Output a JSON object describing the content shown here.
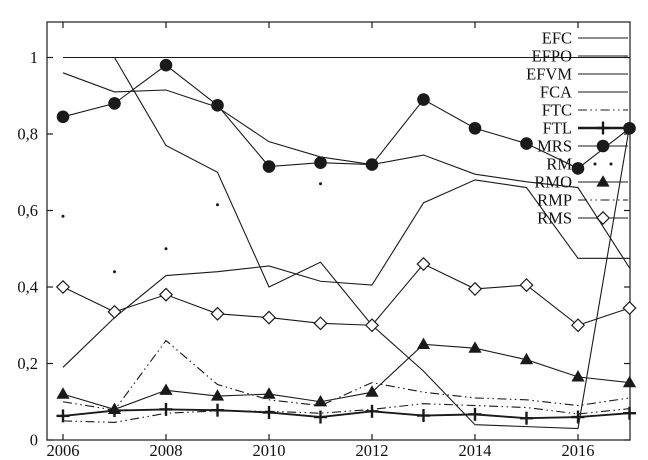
{
  "colors": {
    "ink": "#1a1a1a",
    "background": "#ffffff"
  },
  "chart_data": {
    "type": "line",
    "title": "",
    "xlabel": "",
    "ylabel": "",
    "x_years": [
      2006,
      2007,
      2008,
      2009,
      2010,
      2011,
      2012,
      2013,
      2014,
      2015,
      2016,
      2017
    ],
    "x_ticks": [
      {
        "value": 2006,
        "label": "2006"
      },
      {
        "value": 2008,
        "label": "2008"
      },
      {
        "value": 2010,
        "label": "2010"
      },
      {
        "value": 2012,
        "label": "2012"
      },
      {
        "value": 2014,
        "label": "2014"
      },
      {
        "value": 2016,
        "label": "2016"
      }
    ],
    "y_ticks": [
      {
        "value": 0,
        "label": "0"
      },
      {
        "value": 0.2,
        "label": "0,2"
      },
      {
        "value": 0.4,
        "label": "0,4"
      },
      {
        "value": 0.6,
        "label": "0,6"
      },
      {
        "value": 0.8,
        "label": "0,8"
      },
      {
        "value": 1,
        "label": "1"
      }
    ],
    "ylim": [
      0,
      1.09
    ],
    "grid": false,
    "legend_position": "top-right-inside",
    "series": [
      {
        "label": "EFC",
        "marker": "none",
        "line": "solid",
        "values": [
          1,
          1,
          1,
          1,
          1,
          1,
          1,
          1,
          1,
          1,
          1,
          1
        ]
      },
      {
        "label": "EFPO",
        "marker": "none",
        "line": "solid",
        "values": [
          0.96,
          0.91,
          0.915,
          0.87,
          0.78,
          0.74,
          0.72,
          0.745,
          0.695,
          0.675,
          0.66,
          0.45
        ]
      },
      {
        "label": "EFVM",
        "marker": "none",
        "line": "solid",
        "values": [
          1.0,
          1.0,
          0.77,
          0.7,
          0.4,
          0.465,
          0.3,
          0.18,
          0.04,
          0.035,
          0.03,
          0.82
        ]
      },
      {
        "label": "FCA",
        "marker": "none",
        "line": "solid",
        "values": [
          0.19,
          0.32,
          0.43,
          0.44,
          0.455,
          0.415,
          0.405,
          0.62,
          0.68,
          0.66,
          0.475,
          0.475
        ]
      },
      {
        "label": "FTC",
        "marker": "none",
        "line": "dashdotdot",
        "values": [
          0.05,
          0.046,
          0.07,
          0.076,
          0.075,
          0.07,
          0.08,
          0.095,
          0.09,
          0.085,
          0.068,
          0.082
        ]
      },
      {
        "label": "FTL",
        "marker": "plus",
        "line": "solid-bold",
        "values": [
          0.063,
          0.077,
          0.08,
          0.078,
          0.072,
          0.06,
          0.075,
          0.064,
          0.067,
          0.057,
          0.06,
          0.07
        ]
      },
      {
        "label": "MRS",
        "marker": "filled-circle",
        "line": "solid",
        "values": [
          0.845,
          0.88,
          0.98,
          0.875,
          0.715,
          0.725,
          0.72,
          0.89,
          0.815,
          0.775,
          0.71,
          0.815
        ]
      },
      {
        "label": "RM",
        "marker": "dot",
        "line": "none",
        "values": [
          0.585,
          0.44,
          0.5,
          0.615,
          null,
          0.67,
          null,
          null,
          null,
          null,
          null,
          null
        ]
      },
      {
        "label": "RMO",
        "marker": "filled-triangle",
        "line": "solid",
        "values": [
          0.12,
          0.08,
          0.13,
          0.115,
          0.12,
          0.1,
          0.125,
          0.25,
          0.24,
          0.21,
          0.165,
          0.15
        ]
      },
      {
        "label": "RMP",
        "marker": "none",
        "line": "dashdotdot",
        "values": [
          0.1,
          0.078,
          0.26,
          0.145,
          0.105,
          0.09,
          0.15,
          0.125,
          0.11,
          0.105,
          0.09,
          0.11
        ]
      },
      {
        "label": "RMS",
        "marker": "open-diamond",
        "line": "solid",
        "values": [
          0.4,
          0.335,
          0.38,
          0.33,
          0.32,
          0.305,
          0.3,
          0.46,
          0.395,
          0.405,
          0.3,
          0.345
        ]
      }
    ]
  }
}
